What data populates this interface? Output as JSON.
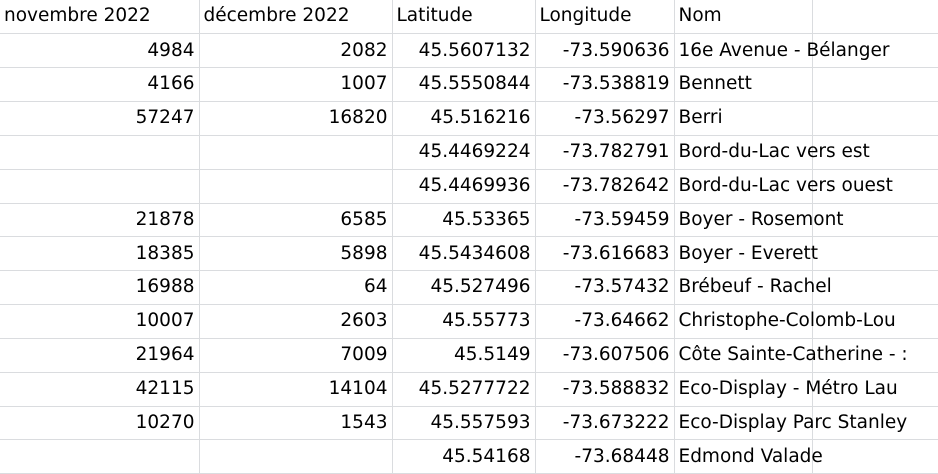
{
  "sheet": {
    "headers": [
      "novembre 2022",
      "décembre 2022",
      "Latitude",
      "Longitude",
      "Nom",
      ""
    ],
    "rows": [
      [
        "4984",
        "2082",
        "45.5607132",
        "-73.590636",
        "16e Avenue - Bélanger",
        ""
      ],
      [
        "4166",
        "1007",
        "45.5550844",
        "-73.538819",
        "Bennett",
        ""
      ],
      [
        "57247",
        "16820",
        "45.516216",
        "-73.56297",
        "Berri",
        ""
      ],
      [
        "",
        "",
        "45.4469224",
        "-73.782791",
        "Bord-du-Lac vers est",
        ""
      ],
      [
        "",
        "",
        "45.4469936",
        "-73.782642",
        "Bord-du-Lac vers ouest",
        ""
      ],
      [
        "21878",
        "6585",
        "45.53365",
        "-73.59459",
        "Boyer - Rosemont",
        ""
      ],
      [
        "18385",
        "5898",
        "45.5434608",
        "-73.616683",
        "Boyer - Everett",
        ""
      ],
      [
        "16988",
        "64",
        "45.527496",
        "-73.57432",
        "Brébeuf - Rachel",
        ""
      ],
      [
        "10007",
        "2603",
        "45.55773",
        "-73.64662",
        "Christophe-Colomb-Lou",
        ""
      ],
      [
        "21964",
        "7009",
        "45.5149",
        "-73.607506",
        "Côte Sainte-Catherine - :",
        ""
      ],
      [
        "42115",
        "14104",
        "45.5277722",
        "-73.588832",
        "Eco-Display - Métro Lau",
        ""
      ],
      [
        "10270",
        "1543",
        "45.557593",
        "-73.673222",
        "Eco-Display Parc Stanley",
        ""
      ],
      [
        "",
        "",
        "45.54168",
        "-73.68448",
        "Edmond Valade",
        ""
      ]
    ]
  }
}
